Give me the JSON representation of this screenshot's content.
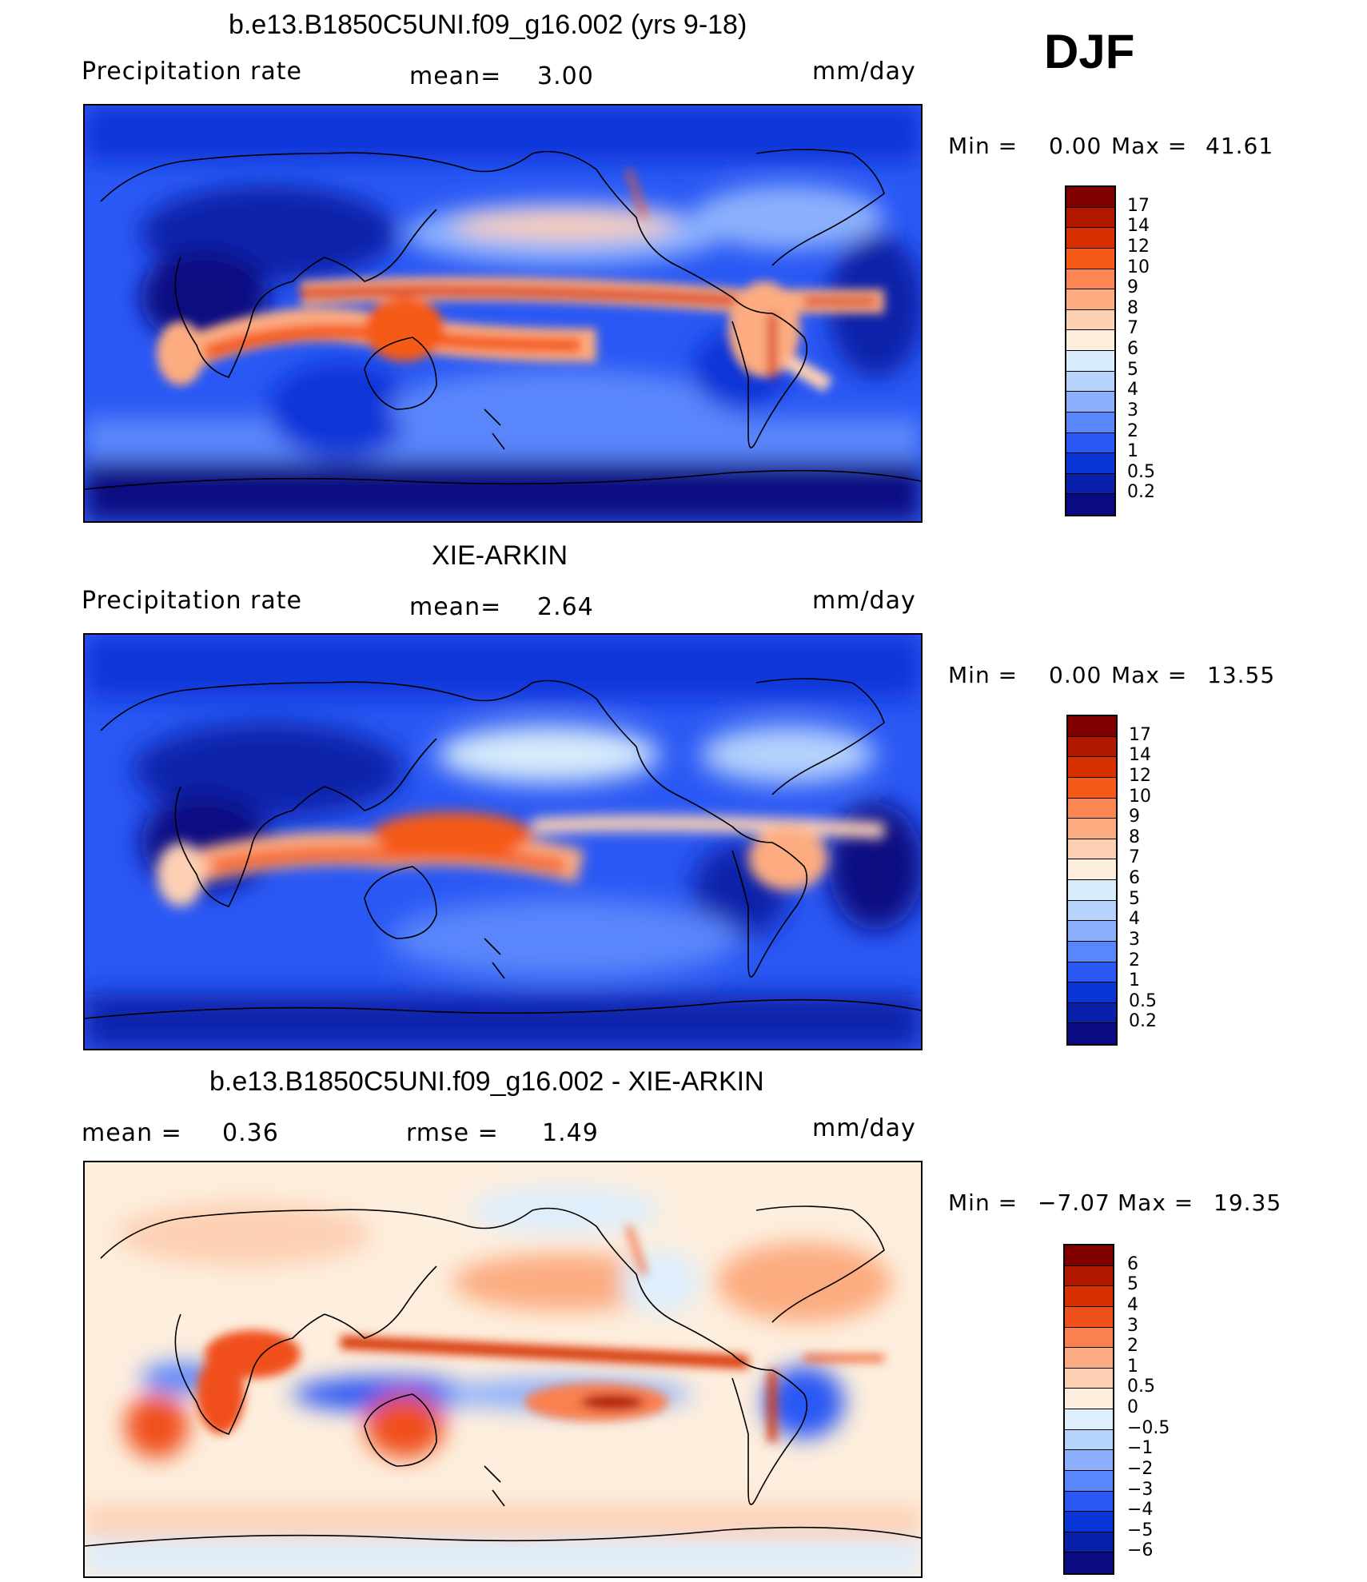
{
  "season": "DJF",
  "panels": [
    {
      "id": "model",
      "title": "b.e13.B1850C5UNI.f09_g16.002 (yrs 9-18)",
      "variable": "Precipitation rate",
      "stat1_label": "mean=",
      "stat1_value": "3.00",
      "stat2_label": "",
      "stat2_value": "",
      "units": "mm/day",
      "min_label": "Min =",
      "min_value": "0.00",
      "max_label": "Max =",
      "max_value": "41.61",
      "colorbar": {
        "labels": [
          "17",
          "14",
          "12",
          "10",
          "9",
          "8",
          "7",
          "6",
          "5",
          "4",
          "3",
          "2",
          "1",
          "0.5",
          "0.2"
        ],
        "colors": [
          "#800000",
          "#b21800",
          "#d83000",
          "#f55a18",
          "#fc8652",
          "#fcac80",
          "#fdd0b4",
          "#fdeedd",
          "#d8ecfb",
          "#b6d3fd",
          "#8cb0fd",
          "#5a86fb",
          "#2a58f4",
          "#0a36d8",
          "#0820aa",
          "#0a0a82"
        ]
      }
    },
    {
      "id": "obs",
      "title": "XIE-ARKIN",
      "variable": "Precipitation rate",
      "stat1_label": "mean=",
      "stat1_value": "2.64",
      "stat2_label": "",
      "stat2_value": "",
      "units": "mm/day",
      "min_label": "Min =",
      "min_value": "0.00",
      "max_label": "Max =",
      "max_value": "13.55",
      "colorbar": {
        "labels": [
          "17",
          "14",
          "12",
          "10",
          "9",
          "8",
          "7",
          "6",
          "5",
          "4",
          "3",
          "2",
          "1",
          "0.5",
          "0.2"
        ],
        "colors": [
          "#800000",
          "#b21800",
          "#d83000",
          "#f55a18",
          "#fc8652",
          "#fcac80",
          "#fdd0b4",
          "#fdeedd",
          "#d8ecfb",
          "#b6d3fd",
          "#8cb0fd",
          "#5a86fb",
          "#2a58f4",
          "#0a36d8",
          "#0820aa",
          "#0a0a82"
        ]
      }
    },
    {
      "id": "diff",
      "title": "b.e13.B1850C5UNI.f09_g16.002 - XIE-ARKIN",
      "variable": "",
      "stat1_label": "mean =",
      "stat1_value": "0.36",
      "stat2_label": "rmse =",
      "stat2_value": "1.49",
      "units": "mm/day",
      "min_label": "Min =",
      "min_value": "−7.07",
      "max_label": "Max =",
      "max_value": "19.35",
      "colorbar": {
        "labels": [
          "6",
          "5",
          "4",
          "3",
          "2",
          "1",
          "0.5",
          "0",
          "−0.5",
          "−1",
          "−2",
          "−3",
          "−4",
          "−5",
          "−6"
        ],
        "colors": [
          "#800000",
          "#b21800",
          "#d83000",
          "#f0501a",
          "#fa8050",
          "#fcaa82",
          "#fdd0b4",
          "#fdeedd",
          "#deeefc",
          "#b6d3fd",
          "#8cb0fd",
          "#5a86fb",
          "#2a58f4",
          "#0a36d8",
          "#0820aa",
          "#0a0a82"
        ]
      }
    }
  ]
}
